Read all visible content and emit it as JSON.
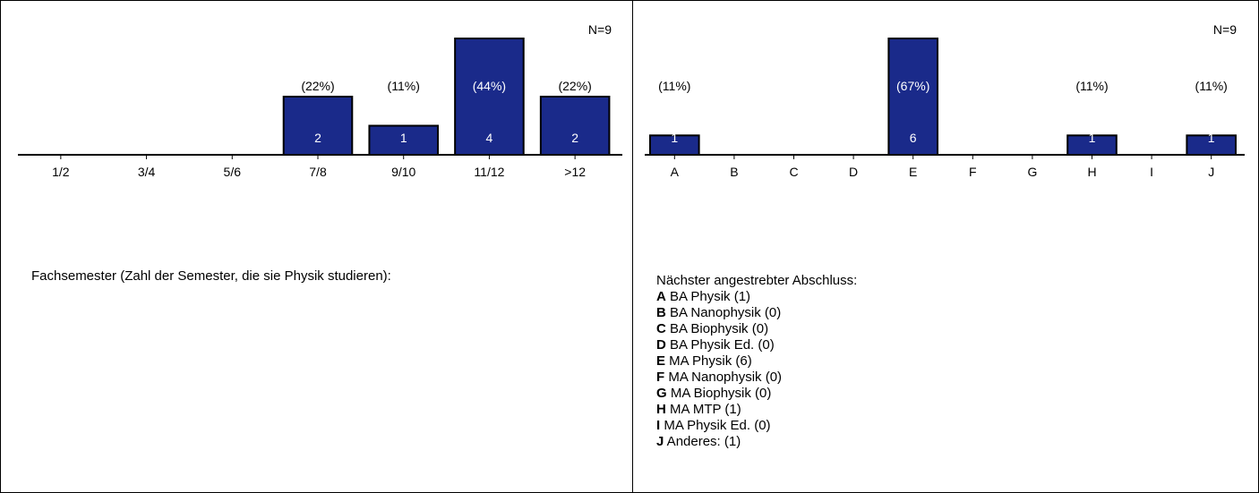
{
  "chart_data": [
    {
      "type": "bar",
      "n_label": "N=9",
      "categories": [
        "1/2",
        "3/4",
        "5/6",
        "7/8",
        "9/10",
        "11/12",
        ">12"
      ],
      "values": [
        0,
        0,
        0,
        2,
        1,
        4,
        2
      ],
      "percent_labels": [
        "",
        "",
        "",
        "(22%)",
        "(11%)",
        "(44%)",
        "(22%)"
      ],
      "ylim": [
        0,
        4
      ],
      "caption": "Fachsemester (Zahl der Semester, die sie Physik studieren):",
      "bar_color": "#1a2a8a"
    },
    {
      "type": "bar",
      "n_label": "N=9",
      "categories": [
        "A",
        "B",
        "C",
        "D",
        "E",
        "F",
        "G",
        "H",
        "I",
        "J"
      ],
      "values": [
        1,
        0,
        0,
        0,
        6,
        0,
        0,
        1,
        0,
        1
      ],
      "percent_labels": [
        "(11%)",
        "",
        "",
        "",
        "(67%)",
        "",
        "",
        "(11%)",
        "",
        "(11%)"
      ],
      "ylim": [
        0,
        6
      ],
      "caption": "Nächster angestrebter Abschluss:",
      "bar_color": "#1a2a8a",
      "legend": [
        {
          "key": "A",
          "text": "BA Physik (1)"
        },
        {
          "key": "B",
          "text": "BA Nanophysik (0)"
        },
        {
          "key": "C",
          "text": "BA Biophysik (0)"
        },
        {
          "key": "D",
          "text": "BA Physik Ed. (0)"
        },
        {
          "key": "E",
          "text": "MA Physik (6)"
        },
        {
          "key": "F",
          "text": "MA Nanophysik (0)"
        },
        {
          "key": "G",
          "text": "MA Biophysik (0)"
        },
        {
          "key": "H",
          "text": "MA MTP (1)"
        },
        {
          "key": "I",
          "text": "MA Physik Ed. (0)"
        },
        {
          "key": "J",
          "text": "Anderes: (1)"
        }
      ]
    }
  ]
}
